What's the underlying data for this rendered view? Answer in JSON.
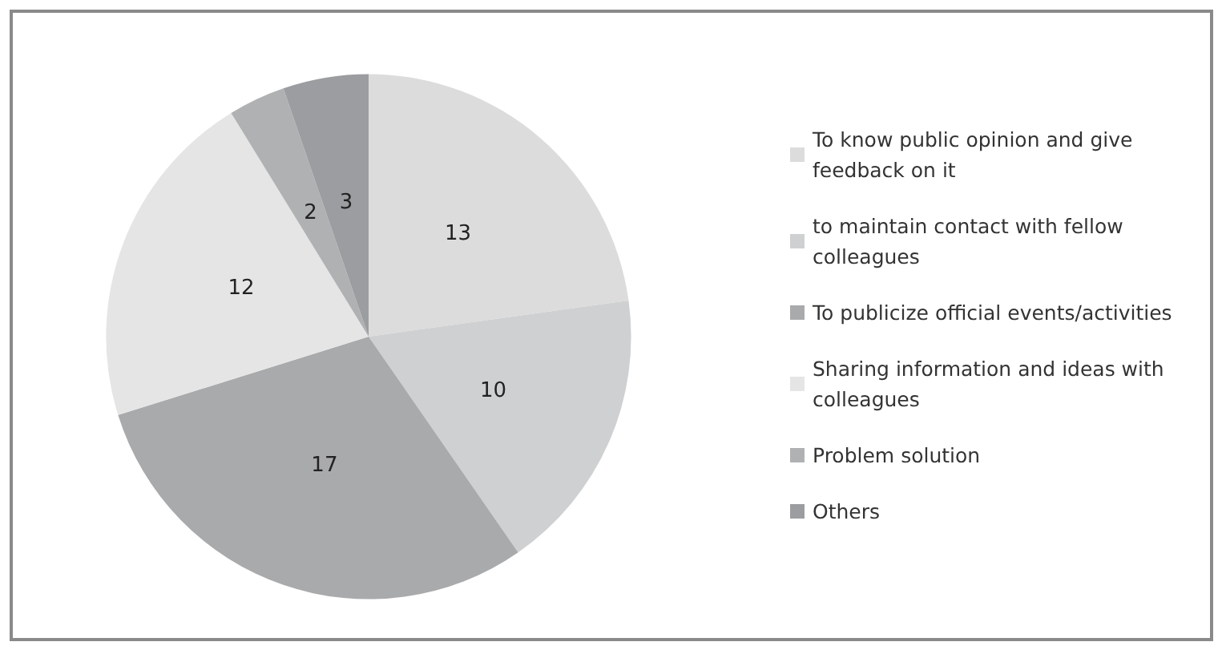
{
  "chart_data": {
    "type": "pie",
    "categories": [
      "To know public opinion and give feedback on it",
      "to maintain contact with fellow colleagues",
      "To publicize official events/activities",
      "Sharing information and ideas with colleagues",
      "Problem solution",
      "Others"
    ],
    "values": [
      13,
      10,
      17,
      12,
      2,
      3
    ],
    "colors": [
      "#dcdcdd",
      "#cfd0d1",
      "#a9aaac",
      "#e5e5e5",
      "#b0b1b3",
      "#9c9da0"
    ],
    "data_labels": true,
    "legend": "right"
  }
}
